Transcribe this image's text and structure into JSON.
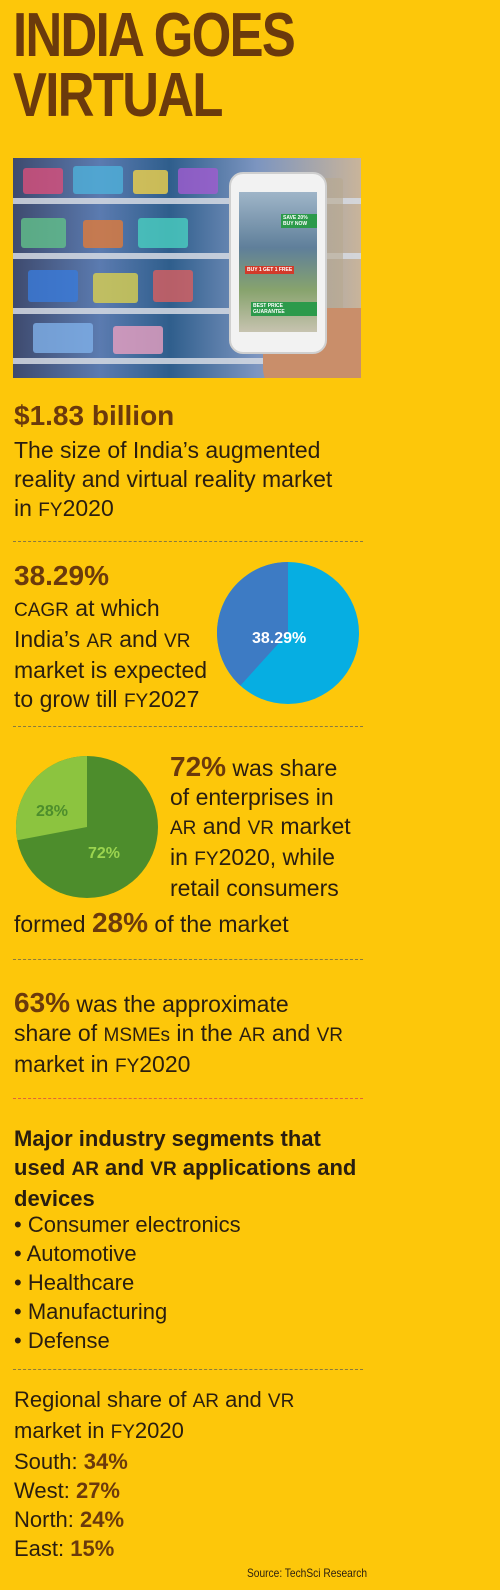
{
  "title_line1": "INDIA GOES",
  "title_line2": "VIRTUAL",
  "hero_image": {
    "phone_tags": [
      "SAVE 20% BUY NOW",
      "BUY 1 GET 1 FREE",
      "BEST PRICE GUARANTEE"
    ]
  },
  "stat1": {
    "value": "$1.83 billion",
    "text_a": "The size of India’s augmented",
    "text_b": "reality and virtual reality market",
    "text_c": "in",
    "text_c_sc": "FY",
    "text_c2": "2020"
  },
  "stat2": {
    "value": "38.29%",
    "line1_sc": "CAGR",
    "line1": " at which",
    "line2a": "India’s ",
    "line2_ar": "AR",
    "line2b": " and ",
    "line2_vr": "VR",
    "line3": "market is expected",
    "line4a": "to grow till ",
    "line4_sc": "FY",
    "line4b": "2027",
    "pie_label": "38.29%",
    "pie_value_pct": 38.29,
    "colors": {
      "slice": "#3d7bc4",
      "rest": "#06aee2"
    }
  },
  "stat3": {
    "value": "72%",
    "l1": " was share",
    "l2": "of enterprises in",
    "l3a_sc": "AR",
    "l3b": " and ",
    "l3c_sc": "VR",
    "l3d": " market",
    "l4a": "in ",
    "l4_sc": "FY",
    "l4b": "2020, while",
    "l5": "retail consumers",
    "l6a": "formed ",
    "l6_big": "28%",
    "l6b": " of the market",
    "pie_label_major": "72%",
    "pie_label_minor": "28%",
    "pie_major_pct": 72,
    "colors": {
      "major": "#4d8d2c",
      "minor": "#8cc43f"
    }
  },
  "stat4": {
    "value": "63%",
    "l1": " was the approximate",
    "l2a": "share of ",
    "l2_sc": "MSMEs",
    "l2b": " in the ",
    "l2_ar": "AR",
    "l2c": " and ",
    "l2_vr": "VR",
    "l3a": "market in ",
    "l3_sc": "FY",
    "l3b": "2020"
  },
  "segments": {
    "heading_a": "Major industry segments that",
    "heading_b": "used ",
    "heading_ar": "AR",
    "heading_c": " and ",
    "heading_vr": "VR",
    "heading_d": " applications and",
    "heading_e": "devices",
    "items": [
      "Consumer electronics",
      "Automotive",
      "Healthcare",
      "Manufacturing",
      "Defense"
    ]
  },
  "regional": {
    "heading_a": "Regional share of ",
    "heading_ar": "AR",
    "heading_b": " and ",
    "heading_vr": "VR",
    "heading_c": "market in ",
    "heading_sc": "FY",
    "heading_d": "2020",
    "rows": [
      {
        "label": "South: ",
        "value": "34%"
      },
      {
        "label": "West: ",
        "value": "27%"
      },
      {
        "label": "North: ",
        "value": "24%"
      },
      {
        "label": "East: ",
        "value": "15%"
      }
    ]
  },
  "source": "Source: TechSci Research",
  "colors": {
    "background": "#fdc70a",
    "accent": "#6b3a0c"
  }
}
